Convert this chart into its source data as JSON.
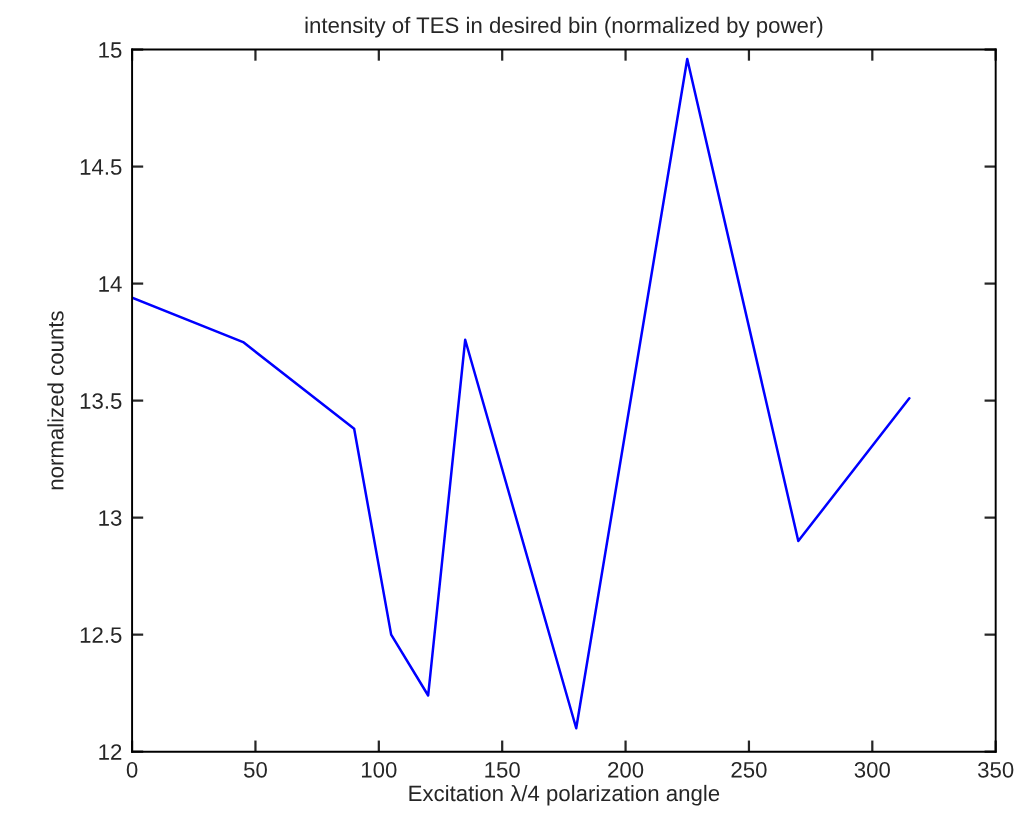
{
  "chart_data": {
    "type": "line",
    "title": "intensity of TES in desired bin (normalized by power)",
    "xlabel": "Excitation λ/4 polarization angle",
    "ylabel": "normalized counts",
    "x": [
      0,
      45,
      90,
      105,
      120,
      135,
      180,
      225,
      270,
      315
    ],
    "series": [
      {
        "color": "#0000ff",
        "values": [
          13.94,
          13.75,
          13.38,
          12.5,
          12.24,
          13.76,
          12.1,
          14.96,
          12.9,
          13.51
        ]
      }
    ],
    "xlim": [
      0,
      350
    ],
    "xticks": [
      0,
      50,
      100,
      150,
      200,
      250,
      300,
      350
    ],
    "ylim": [
      12,
      15
    ],
    "yticks": [
      12,
      12.5,
      13,
      13.5,
      14,
      14.5,
      15
    ],
    "grid": false,
    "marker": "none",
    "line_style": "solid"
  }
}
